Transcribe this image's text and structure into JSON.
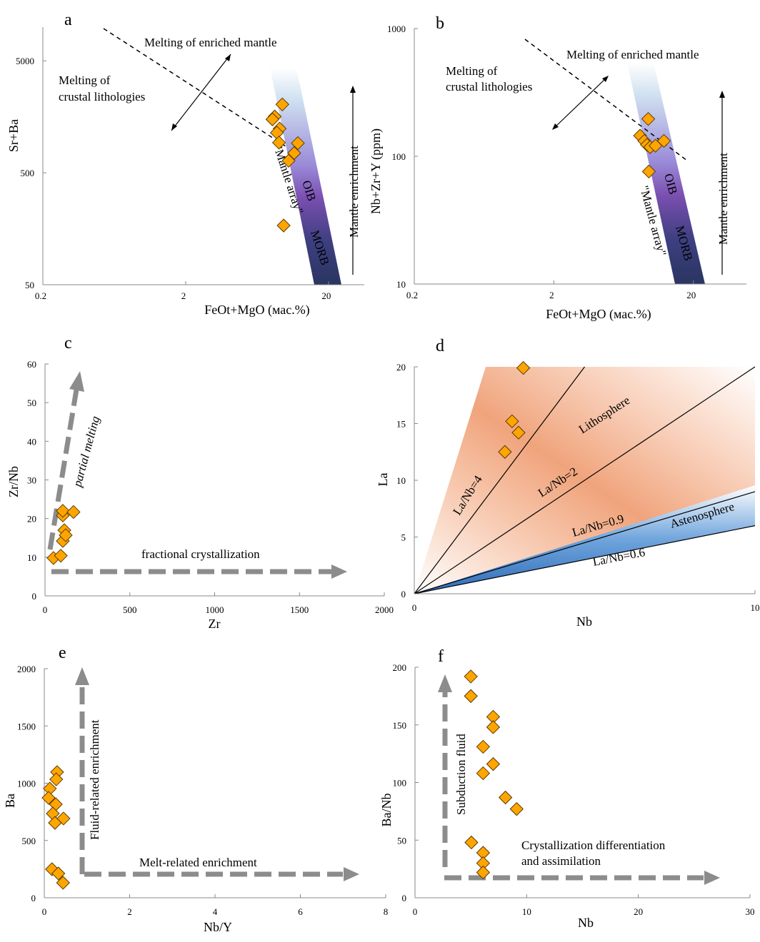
{
  "colors": {
    "marker": "#FFA500",
    "marker_edge": "#5a3a00",
    "arrow_gray": "#8c8c8c",
    "band_light": "#cfe0f0",
    "band_purple": "#7a4fb0",
    "band_navy": "#2a3560",
    "litho_orange": "#f0a47c",
    "astheno_blue": "#3a7cc8"
  },
  "chart_data": [
    {
      "panel": "a",
      "type": "scatter",
      "xlabel": "FeOt+MgO (мас.%)",
      "ylabel": "Sr+Ba",
      "xscale": "log",
      "yscale": "log",
      "xlim": [
        0.2,
        35.6
      ],
      "ylim": [
        50,
        10000
      ],
      "xticks": [
        {
          "v": 0.2,
          "t": "0.2"
        },
        {
          "v": 2,
          "t": "2"
        },
        {
          "v": 20,
          "t": "20"
        }
      ],
      "yticks": [
        {
          "v": 50,
          "t": "50"
        },
        {
          "v": 500,
          "t": "500"
        },
        {
          "v": 5000,
          "t": "5000"
        }
      ],
      "annotations": [
        "Melting of enriched mantle",
        "Melting of",
        "crustal lithologies",
        "\"Mantle array\"",
        "OIB",
        "MORB",
        "Mantle enrichment"
      ],
      "points": [
        [
          9.5,
          2040
        ],
        [
          8.4,
          1590
        ],
        [
          8.1,
          1500
        ],
        [
          9.1,
          1240
        ],
        [
          8.7,
          1140
        ],
        [
          9.0,
          930
        ],
        [
          12.2,
          920
        ],
        [
          11.5,
          750
        ],
        [
          10.5,
          640
        ],
        [
          9.7,
          169
        ]
      ]
    },
    {
      "panel": "b",
      "type": "scatter",
      "xlabel": "FeOt+MgO (мас.%)",
      "ylabel": "Nb+Zr+Y (ppm)",
      "xscale": "log",
      "yscale": "log",
      "xlim": [
        0.2,
        48
      ],
      "ylim": [
        10,
        1000
      ],
      "xticks": [
        {
          "v": 0.2,
          "t": "0.2"
        },
        {
          "v": 2,
          "t": "2"
        },
        {
          "v": 20,
          "t": "20"
        }
      ],
      "yticks": [
        {
          "v": 10,
          "t": "10"
        },
        {
          "v": 100,
          "t": "100"
        },
        {
          "v": 1000,
          "t": "1000"
        }
      ],
      "annotations": [
        "Melting of enriched mantle",
        "Melting of",
        "crustal lithologies",
        "\"Mantle array\"",
        "OIB",
        "MORB",
        "Mantle enrichment"
      ],
      "points": [
        [
          9.5,
          196
        ],
        [
          8.3,
          145
        ],
        [
          8.9,
          132
        ],
        [
          9.3,
          123
        ],
        [
          9.8,
          118
        ],
        [
          10.7,
          121
        ],
        [
          12.3,
          132
        ],
        [
          9.6,
          76
        ]
      ]
    },
    {
      "panel": "c",
      "type": "scatter",
      "xlabel": "Zr",
      "ylabel": "Zr/Nb",
      "xscale": "linear",
      "yscale": "linear",
      "xlim": [
        0,
        2000
      ],
      "ylim": [
        0,
        60
      ],
      "xticks": [
        {
          "v": 0,
          "t": "0"
        },
        {
          "v": 500,
          "t": "500"
        },
        {
          "v": 1000,
          "t": "1000"
        },
        {
          "v": 1500,
          "t": "1500"
        },
        {
          "v": 2000,
          "t": "2000"
        }
      ],
      "yticks": [
        {
          "v": 0,
          "t": "0"
        },
        {
          "v": 10,
          "t": "10"
        },
        {
          "v": 20,
          "t": "20"
        },
        {
          "v": 30,
          "t": "30"
        },
        {
          "v": 40,
          "t": "40"
        },
        {
          "v": 50,
          "t": "50"
        },
        {
          "v": 60,
          "t": "60"
        }
      ],
      "annotations": [
        "partial melting",
        "fractional crystallization"
      ],
      "points": [
        [
          50,
          9.8
        ],
        [
          93,
          10.4
        ],
        [
          105,
          20.8
        ],
        [
          114,
          17
        ],
        [
          105,
          14.2
        ],
        [
          122,
          15.7
        ],
        [
          105,
          22
        ],
        [
          168,
          21.7
        ]
      ]
    },
    {
      "panel": "d",
      "type": "scatter",
      "xlabel": "Nb",
      "ylabel": "La",
      "xscale": "linear",
      "yscale": "linear",
      "xlim": [
        0,
        10
      ],
      "ylim": [
        0,
        20
      ],
      "xticks": [
        {
          "v": 0,
          "t": "0"
        },
        {
          "v": 10,
          "t": "10"
        }
      ],
      "yticks": [
        {
          "v": 0,
          "t": "0"
        },
        {
          "v": 5,
          "t": "5"
        },
        {
          "v": 10,
          "t": "10"
        },
        {
          "v": 15,
          "t": "15"
        },
        {
          "v": 20,
          "t": "20"
        }
      ],
      "ratio_lines": [
        {
          "ratio": 4,
          "t": "La/Nb=4"
        },
        {
          "ratio": 2,
          "t": "La/Nb=2"
        },
        {
          "ratio": 0.9,
          "t": "La/Nb=0.9"
        },
        {
          "ratio": 0.6,
          "t": "La/Nb=0.6"
        }
      ],
      "annotations": [
        "Lithosphere",
        "Astenosphere"
      ],
      "points": [
        [
          3.2,
          19.9
        ],
        [
          2.87,
          15.2
        ],
        [
          3.06,
          14.2
        ],
        [
          2.66,
          12.5
        ]
      ]
    },
    {
      "panel": "e",
      "type": "scatter",
      "xlabel": "Nb/Y",
      "ylabel": "Ba",
      "xscale": "linear",
      "yscale": "linear",
      "xlim": [
        0,
        8
      ],
      "ylim": [
        0,
        2000
      ],
      "xticks": [
        {
          "v": 0,
          "t": "0"
        },
        {
          "v": 2,
          "t": "2"
        },
        {
          "v": 4,
          "t": "4"
        },
        {
          "v": 6,
          "t": "6"
        },
        {
          "v": 8,
          "t": "8"
        }
      ],
      "yticks": [
        {
          "v": 0,
          "t": "0"
        },
        {
          "v": 500,
          "t": "500"
        },
        {
          "v": 1000,
          "t": "1000"
        },
        {
          "v": 1500,
          "t": "1500"
        },
        {
          "v": 2000,
          "t": "2000"
        }
      ],
      "annotations": [
        "Fluid-related enrichment",
        "Melt-related enrichment"
      ],
      "points": [
        [
          0.3,
          1097
        ],
        [
          0.28,
          1034
        ],
        [
          0.13,
          953
        ],
        [
          0.1,
          872
        ],
        [
          0.27,
          816
        ],
        [
          0.2,
          735
        ],
        [
          0.45,
          692
        ],
        [
          0.25,
          654
        ],
        [
          0.18,
          249
        ],
        [
          0.33,
          212
        ],
        [
          0.44,
          131
        ]
      ]
    },
    {
      "panel": "f",
      "type": "scatter",
      "xlabel": "Nb",
      "ylabel": "Ba/Nb",
      "xscale": "linear",
      "yscale": "linear",
      "xlim": [
        0,
        30
      ],
      "ylim": [
        0,
        200
      ],
      "xticks": [
        {
          "v": 0,
          "t": "0"
        },
        {
          "v": 10,
          "t": "10"
        },
        {
          "v": 20,
          "t": "20"
        },
        {
          "v": 30,
          "t": "30"
        }
      ],
      "yticks": [
        {
          "v": 0,
          "t": "0"
        },
        {
          "v": 50,
          "t": "50"
        },
        {
          "v": 100,
          "t": "100"
        },
        {
          "v": 150,
          "t": "150"
        },
        {
          "v": 200,
          "t": "200"
        }
      ],
      "annotations": [
        "Subduction fluid",
        "Crystallization differentiation",
        "and assimilation"
      ],
      "points": [
        [
          5.0,
          192
        ],
        [
          5.0,
          175
        ],
        [
          7.0,
          157
        ],
        [
          7.0,
          148
        ],
        [
          6.1,
          131
        ],
        [
          6.1,
          108
        ],
        [
          7.0,
          116
        ],
        [
          8.1,
          87
        ],
        [
          9.1,
          77
        ],
        [
          5.05,
          48
        ],
        [
          6.1,
          39
        ],
        [
          6.1,
          30
        ],
        [
          6.1,
          22
        ]
      ]
    }
  ]
}
